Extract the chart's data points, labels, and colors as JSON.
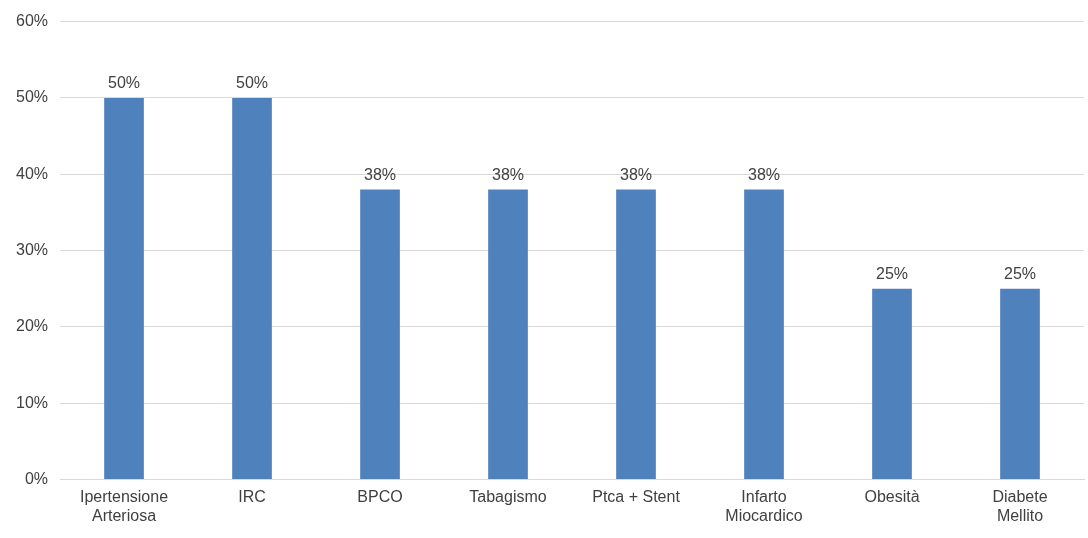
{
  "chart_data": {
    "type": "bar",
    "categories": [
      "Ipertensione\nArteriosa",
      "IRC",
      "BPCO",
      "Tabagismo",
      "Ptca + Stent",
      "Infarto\nMiocardico",
      "Obesità",
      "Diabete\nMellito"
    ],
    "values": [
      50,
      50,
      38,
      38,
      38,
      38,
      25,
      25
    ],
    "value_labels": [
      "50%",
      "50%",
      "38%",
      "38%",
      "38%",
      "38%",
      "25%",
      "25%"
    ],
    "color": "#4f81bd",
    "ylim": [
      0,
      60
    ],
    "yticks": [
      {
        "value": 0,
        "label": "0%"
      },
      {
        "value": 10,
        "label": "10%"
      },
      {
        "value": 20,
        "label": "20%"
      },
      {
        "value": 30,
        "label": "30%"
      },
      {
        "value": 40,
        "label": "40%"
      },
      {
        "value": 50,
        "label": "50%"
      },
      {
        "value": 60,
        "label": "60%"
      }
    ],
    "grid": "y"
  }
}
